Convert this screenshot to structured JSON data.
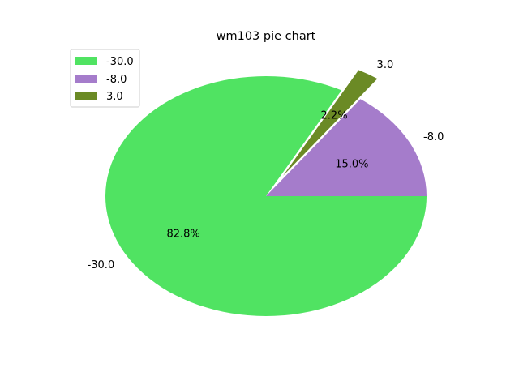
{
  "chart_data": {
    "type": "pie",
    "title": "wm103 pie chart",
    "categories": [
      "-30.0",
      "-8.0",
      "3.0"
    ],
    "values": [
      82.8,
      15.0,
      2.2
    ],
    "percent_labels": [
      "82.8%",
      "15.0%",
      "2.2%"
    ],
    "colors": [
      "#50e362",
      "#a57ccb",
      "#6b8a25"
    ],
    "exploded": [
      false,
      false,
      true
    ],
    "legend": {
      "placement": "upper-left",
      "entries": [
        "-30.0",
        "-8.0",
        "3.0"
      ]
    }
  }
}
